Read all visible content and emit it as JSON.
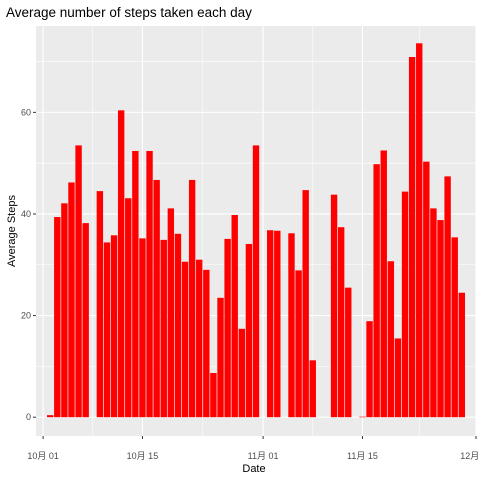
{
  "chart_data": {
    "type": "bar",
    "title": "Average number of steps taken each day",
    "xlabel": "Date",
    "ylabel": "Average Steps",
    "x_axis_type": "date",
    "xlim": [
      "2012-09-30",
      "2012-12-01"
    ],
    "ylim": [
      -3.7,
      77
    ],
    "x_ticks": [
      {
        "date": "2012-10-01",
        "label": "10月 01"
      },
      {
        "date": "2012-10-15",
        "label": "10月 15"
      },
      {
        "date": "2012-11-01",
        "label": "11月 01"
      },
      {
        "date": "2012-11-15",
        "label": "11月 15"
      },
      {
        "date": "2012-12-01",
        "label": "12月 01"
      }
    ],
    "y_ticks": [
      0,
      20,
      40,
      60
    ],
    "grid": true,
    "bar_color": "#FF0000",
    "panel_background": "#EBEBEB",
    "grid_color": "#FFFFFF",
    "legend": "none",
    "series": [
      {
        "dates": [
          "2012-10-02",
          "2012-10-03",
          "2012-10-04",
          "2012-10-05",
          "2012-10-06",
          "2012-10-07",
          "2012-10-09",
          "2012-10-10",
          "2012-10-11",
          "2012-10-12",
          "2012-10-13",
          "2012-10-14",
          "2012-10-15",
          "2012-10-16",
          "2012-10-17",
          "2012-10-18",
          "2012-10-19",
          "2012-10-20",
          "2012-10-21",
          "2012-10-22",
          "2012-10-23",
          "2012-10-24",
          "2012-10-25",
          "2012-10-26",
          "2012-10-27",
          "2012-10-28",
          "2012-10-29",
          "2012-10-30",
          "2012-10-31",
          "2012-11-02",
          "2012-11-03",
          "2012-11-05",
          "2012-11-06",
          "2012-11-07",
          "2012-11-08",
          "2012-11-11",
          "2012-11-12",
          "2012-11-13",
          "2012-11-15",
          "2012-11-16",
          "2012-11-17",
          "2012-11-18",
          "2012-11-19",
          "2012-11-20",
          "2012-11-21",
          "2012-11-22",
          "2012-11-23",
          "2012-11-24",
          "2012-11-25",
          "2012-11-26",
          "2012-11-27",
          "2012-11-28",
          "2012-11-29"
        ],
        "values": [
          0.4,
          39.4,
          42.1,
          46.2,
          53.5,
          38.2,
          44.5,
          34.4,
          35.8,
          60.4,
          43.1,
          52.4,
          35.2,
          52.4,
          46.7,
          34.9,
          41.1,
          36.1,
          30.6,
          46.7,
          31.0,
          29.0,
          8.7,
          23.5,
          35.1,
          39.8,
          17.4,
          34.1,
          53.5,
          36.8,
          36.7,
          36.2,
          28.9,
          44.7,
          11.2,
          43.8,
          37.4,
          25.5,
          0.1,
          18.9,
          49.8,
          52.5,
          30.7,
          15.5,
          44.4,
          70.9,
          73.6,
          50.3,
          41.1,
          38.8,
          47.4,
          35.4,
          24.5
        ]
      }
    ]
  }
}
